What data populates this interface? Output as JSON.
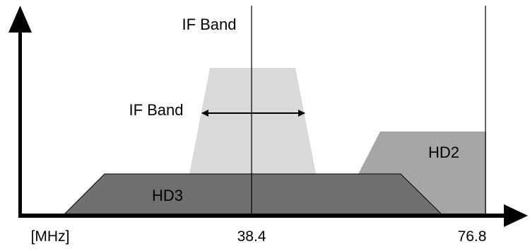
{
  "labels": {
    "if_band_top": "IF Band",
    "if_band_arrow": "IF Band",
    "hd2": "HD2",
    "hd3": "HD3"
  },
  "axis": {
    "unit": "[MHz]",
    "tick_center": "38.4",
    "tick_right": "76.8"
  },
  "colors": {
    "if_band_fill": "#d9d9d9",
    "hd2_fill": "#a6a6a6",
    "hd3_fill": "#6f6f6f",
    "axis": "#000000"
  }
}
